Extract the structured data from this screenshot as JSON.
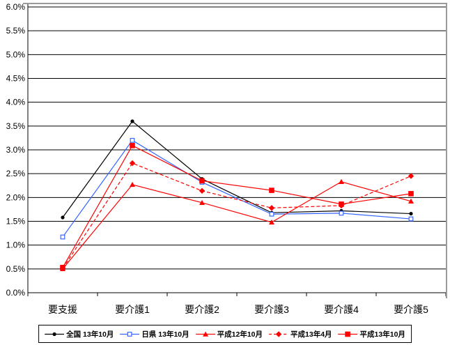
{
  "chart_data": {
    "type": "line",
    "title": "",
    "xlabel": "",
    "ylabel": "",
    "categories": [
      "要支援",
      "要介護1",
      "要介護2",
      "要介護3",
      "要介護4",
      "要介護5"
    ],
    "series": [
      {
        "name": "全国 13年10月",
        "color": "#000000",
        "marker": "circle",
        "line": "solid",
        "values": [
          1.58,
          3.6,
          2.39,
          1.68,
          1.72,
          1.66
        ]
      },
      {
        "name": "日県 13年10月",
        "color": "#3366ff",
        "marker": "open-square",
        "line": "solid",
        "values": [
          1.17,
          3.2,
          2.32,
          1.65,
          1.67,
          1.55
        ]
      },
      {
        "name": "平成12年10月",
        "color": "#ff0000",
        "marker": "triangle",
        "line": "solid",
        "values": [
          0.5,
          2.27,
          1.89,
          1.48,
          2.33,
          1.92
        ]
      },
      {
        "name": "平成13年4月",
        "color": "#ff0000",
        "marker": "diamond",
        "line": "dashed",
        "values": [
          0.51,
          2.72,
          2.14,
          1.78,
          1.83,
          2.45
        ]
      },
      {
        "name": "平成13年10月",
        "color": "#ff0000",
        "marker": "square",
        "line": "solid",
        "values": [
          0.53,
          3.09,
          2.35,
          2.15,
          1.86,
          2.08
        ]
      }
    ],
    "ylim": [
      0,
      6
    ],
    "ystep": 0.5,
    "y_tick_labels": [
      "0.0%",
      "0.5%",
      "1.0%",
      "1.5%",
      "2.0%",
      "2.5%",
      "3.0%",
      "3.5%",
      "4.0%",
      "4.5%",
      "5.0%",
      "5.5%",
      "6.0%"
    ],
    "grid": true,
    "legend_position": "bottom"
  },
  "colors": {
    "grid": "#000000",
    "axis": "#000000",
    "chart_border": "#9a9a9a",
    "legend_border": "#000000",
    "background": "#ffffff"
  }
}
